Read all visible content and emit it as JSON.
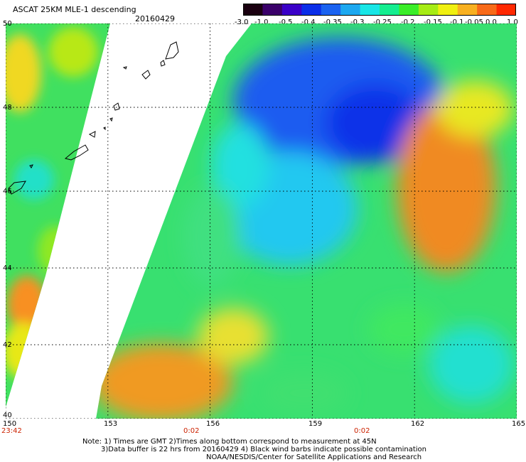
{
  "header": {
    "title": "ASCAT 25KM MLE-1 descending",
    "date": "20160429"
  },
  "colorbar": {
    "labels": [
      "-3.0",
      "-1.0",
      "-0.5",
      "-0.4",
      "-0.35",
      "-0.3",
      "-0.25",
      "-0.2",
      "-0.15",
      "-0.1",
      "-0.05",
      "0.0",
      "1.0"
    ],
    "colors": [
      "#1a0010",
      "#3a006a",
      "#3a00c8",
      "#0a2ee8",
      "#1a62f0",
      "#1ca8f0",
      "#18e6e6",
      "#14ee90",
      "#3aee28",
      "#a6ec14",
      "#f0f010",
      "#f8b020",
      "#f86a18",
      "#ff2800"
    ]
  },
  "map": {
    "lon_labels": [
      "150",
      "153",
      "156",
      "159",
      "162",
      "165"
    ],
    "lat_labels": [
      "50",
      "48",
      "46",
      "44",
      "42",
      "40"
    ],
    "lon_range": [
      150,
      165
    ],
    "lat_range": [
      40,
      50
    ],
    "grid": "dotted"
  },
  "times": {
    "t1": "23:42",
    "t2": "0:02",
    "t3": "0:02"
  },
  "notes": {
    "line1": "Note: 1) Times are GMT 2)Times along bottom correspond to measurement at 45N",
    "line2": "3)Data buffer is 22 hrs from 20160429 4) Black wind barbs indicate possible contamination",
    "line3": "NOAA/NESDIS/Center for Satellite Applications and Research"
  }
}
